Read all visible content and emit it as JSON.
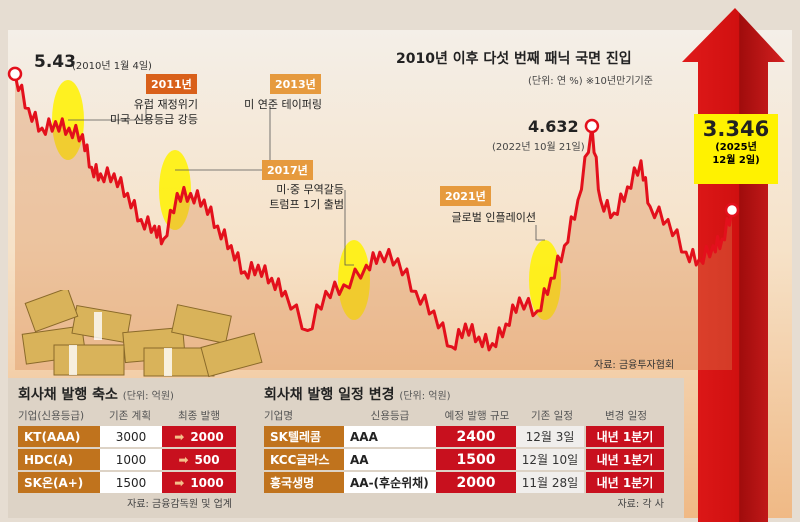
{
  "title": "2010년 이후 다섯 번째 패닉 국면 진입",
  "unit_note": "(단위: 연 %) ※10년만기기준",
  "source_chart": "자료: 금융투자협회",
  "highlights": [
    {
      "value": "5.43",
      "date": "(2010년 1월 4일)"
    },
    {
      "value": "4.632",
      "date": "(2022년 10월 21일)"
    },
    {
      "value": "3.346",
      "date_line1": "(2025년",
      "date_line2": "12월 2일)"
    }
  ],
  "events": [
    {
      "year": "2011년",
      "line1": "유럽 재정위기",
      "line2": "미국 신용등급 강등"
    },
    {
      "year": "2013년",
      "line1": "미 연준 테이퍼링",
      "line2": ""
    },
    {
      "year": "2017년",
      "line1": "미·중 무역갈등",
      "line2": "트럼프 1기 출범"
    },
    {
      "year": "2021년",
      "line1": "글로벌 인플레이션",
      "line2": ""
    }
  ],
  "colors": {
    "line": "#e3101c",
    "accent": "#c0731d",
    "red": "#c8101e",
    "yellow": "#fff200"
  },
  "chart_data": {
    "type": "line",
    "title": "2010년 이후 다섯 번째 패닉 국면 진입",
    "ylabel": "연 %",
    "series": [
      {
        "name": "10년만기 금리",
        "x": [
          2010.0,
          2010.3,
          2010.6,
          2010.9,
          2011.2,
          2011.5,
          2011.7,
          2011.9,
          2012.2,
          2012.5,
          2012.8,
          2013.1,
          2013.3,
          2013.6,
          2013.9,
          2014.2,
          2014.5,
          2014.8,
          2015.1,
          2015.4,
          2015.7,
          2016.0,
          2016.5,
          2016.9,
          2017.3,
          2017.8,
          2018.1,
          2018.5,
          2018.9,
          2019.3,
          2019.7,
          2020.0,
          2020.3,
          2020.6,
          2020.9,
          2021.2,
          2021.6,
          2021.9,
          2022.2,
          2022.5,
          2022.81,
          2023.0,
          2023.3,
          2023.6,
          2023.9,
          2024.1,
          2024.5,
          2024.9,
          2025.2,
          2025.5,
          2025.7,
          2025.92
        ],
        "values": [
          5.43,
          4.9,
          4.6,
          4.7,
          4.6,
          4.5,
          4.0,
          3.9,
          3.9,
          3.6,
          3.2,
          3.1,
          2.9,
          3.6,
          3.6,
          3.5,
          3.1,
          2.8,
          2.4,
          2.5,
          2.3,
          2.1,
          1.5,
          2.1,
          2.2,
          2.5,
          2.7,
          2.6,
          2.1,
          1.8,
          1.25,
          1.6,
          1.4,
          1.3,
          1.6,
          2.0,
          1.8,
          2.3,
          2.8,
          3.5,
          4.632,
          3.5,
          3.3,
          3.7,
          4.1,
          3.4,
          3.2,
          2.7,
          2.6,
          2.8,
          2.9,
          3.346
        ]
      }
    ],
    "xlim": [
      2010,
      2025.92
    ]
  },
  "table1": {
    "title": "회사채 발행 축소",
    "unit": "(단위: 억원)",
    "headers": [
      "기업(신용등급)",
      "기존 계획",
      "최종 발행"
    ],
    "rows": [
      [
        "KT(AAA)",
        "3000",
        "2000"
      ],
      [
        "HDC(A)",
        "1000",
        "500"
      ],
      [
        "SK온(A+)",
        "1500",
        "1000"
      ]
    ],
    "source": "자료: 금융감독원 및 업계"
  },
  "table2": {
    "title": "회사채 발행 일정 변경",
    "unit": "(단위: 억원)",
    "headers": [
      "기업명",
      "신용등급",
      "예정 발행 규모",
      "기존 일정",
      "변경 일정"
    ],
    "rows": [
      [
        "SK텔레콤",
        "AAA",
        "2400",
        "12월 3일",
        "내년 1분기"
      ],
      [
        "KCC글라스",
        "AA",
        "1500",
        "12월 10일",
        "내년 1분기"
      ],
      [
        "흥국생명",
        "AA-(후순위채)",
        "2000",
        "11월 28일",
        "내년 1분기"
      ]
    ],
    "source": "자료: 각 사"
  }
}
